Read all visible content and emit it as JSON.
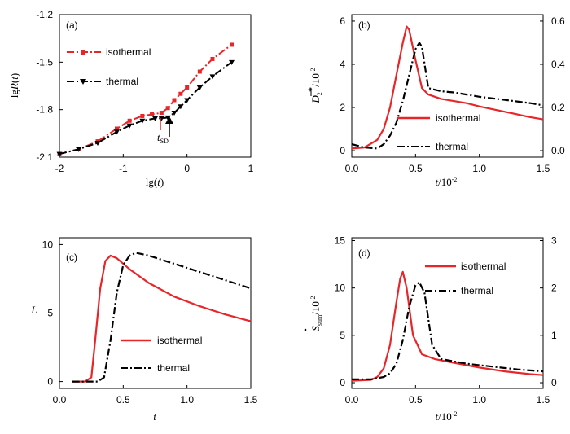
{
  "colors": {
    "isothermal": "#e8262a",
    "thermal": "#000000",
    "axis": "#000000"
  },
  "chart_data": [
    {
      "id": "a",
      "type": "line",
      "panel_label": "(a)",
      "xlabel": "lg(t)",
      "ylabel": "lgR(t)",
      "xlim": [
        -2,
        1
      ],
      "ylim": [
        -2.1,
        -1.2
      ],
      "xticks": [
        -2,
        -1,
        0,
        1
      ],
      "xtick_labels": [
        "-2",
        "-1",
        "0",
        "1"
      ],
      "yticks": [
        -2.1,
        -1.8,
        -1.5,
        -1.2
      ],
      "ytick_labels": [
        "-2.1",
        "-1.8",
        "-1.5",
        "-1.2"
      ],
      "legend_position": "upper-left",
      "annotation": {
        "text": "t",
        "subscript": "SD",
        "x": -0.28,
        "y": -1.855
      },
      "series": [
        {
          "name": "isothermal",
          "marker": "dash-dot",
          "x": [
            -2.0,
            -1.7,
            -1.4,
            -1.1,
            -0.9,
            -0.7,
            -0.55,
            -0.4,
            -0.3,
            -0.2,
            -0.1,
            0.0,
            0.2,
            0.4,
            0.7
          ],
          "y": [
            -2.08,
            -2.05,
            -2.0,
            -1.92,
            -1.87,
            -1.84,
            -1.83,
            -1.82,
            -1.79,
            -1.74,
            -1.7,
            -1.66,
            -1.56,
            -1.48,
            -1.39
          ]
        },
        {
          "name": "thermal",
          "marker": "triangle-down",
          "x": [
            -2.0,
            -1.7,
            -1.4,
            -1.1,
            -0.9,
            -0.7,
            -0.5,
            -0.4,
            -0.3,
            -0.2,
            -0.1,
            0.0,
            0.2,
            0.4,
            0.7
          ],
          "y": [
            -2.08,
            -2.05,
            -2.01,
            -1.94,
            -1.9,
            -1.87,
            -1.855,
            -1.855,
            -1.85,
            -1.82,
            -1.78,
            -1.74,
            -1.66,
            -1.59,
            -1.5
          ]
        }
      ]
    },
    {
      "id": "b",
      "type": "line",
      "panel_label": "(b)",
      "xlabel": "t/10-2",
      "ylabel": "D2*/10-2",
      "xlim": [
        0,
        1.5
      ],
      "ylim": [
        -0.3,
        6.3
      ],
      "xticks": [
        0,
        0.5,
        1.0,
        1.5
      ],
      "xtick_labels": [
        "0.0",
        "0.5",
        "1.0",
        "1.5"
      ],
      "yticks": [
        0,
        2,
        4,
        6
      ],
      "ytick_labels": [
        "0",
        "2",
        "4",
        "6"
      ],
      "y2ticks": [
        0,
        2,
        4,
        6
      ],
      "y2tick_labels": [
        "0.0",
        "0.2",
        "0.4",
        "0.6"
      ],
      "legend_position": "lower-right",
      "series": [
        {
          "name": "isothermal",
          "x": [
            0,
            0.1,
            0.2,
            0.25,
            0.3,
            0.35,
            0.4,
            0.43,
            0.45,
            0.5,
            0.55,
            0.6,
            0.7,
            0.8,
            0.9,
            1.0,
            1.2,
            1.4,
            1.5
          ],
          "y": [
            0.1,
            0.15,
            0.5,
            1.0,
            2.0,
            3.5,
            5.0,
            5.75,
            5.6,
            4.2,
            2.9,
            2.6,
            2.4,
            2.3,
            2.2,
            2.05,
            1.8,
            1.55,
            1.45
          ]
        },
        {
          "name": "thermal",
          "x": [
            0,
            0.1,
            0.2,
            0.25,
            0.3,
            0.35,
            0.4,
            0.45,
            0.5,
            0.53,
            0.55,
            0.6,
            0.7,
            0.8,
            1.0,
            1.2,
            1.4,
            1.5
          ],
          "y": [
            0.3,
            0.15,
            0.1,
            0.3,
            0.7,
            1.3,
            2.3,
            3.5,
            4.7,
            5.0,
            4.8,
            2.9,
            2.75,
            2.7,
            2.5,
            2.35,
            2.2,
            2.1
          ]
        }
      ]
    },
    {
      "id": "c",
      "type": "line",
      "panel_label": "(c)",
      "xlabel": "t",
      "ylabel": "L",
      "xlim": [
        0,
        1.5
      ],
      "ylim": [
        -0.5,
        10.5
      ],
      "xticks": [
        0,
        0.5,
        1.0,
        1.5
      ],
      "xtick_labels": [
        "0.0",
        "0.5",
        "1.0",
        "1.5"
      ],
      "yticks": [
        0,
        5,
        10
      ],
      "ytick_labels": [
        "0",
        "5",
        "10"
      ],
      "legend_position": "lower-center",
      "series": [
        {
          "name": "isothermal",
          "x": [
            0.1,
            0.2,
            0.25,
            0.28,
            0.32,
            0.36,
            0.4,
            0.45,
            0.55,
            0.7,
            0.9,
            1.1,
            1.3,
            1.5
          ],
          "y": [
            0,
            0,
            0.3,
            3.0,
            6.8,
            8.8,
            9.2,
            9.0,
            8.2,
            7.2,
            6.2,
            5.5,
            4.9,
            4.4
          ]
        },
        {
          "name": "thermal",
          "x": [
            0.1,
            0.3,
            0.35,
            0.4,
            0.45,
            0.5,
            0.55,
            0.6,
            0.7,
            0.9,
            1.1,
            1.3,
            1.5
          ],
          "y": [
            0,
            0,
            0.3,
            3.0,
            6.5,
            8.5,
            9.2,
            9.4,
            9.2,
            8.6,
            8.0,
            7.4,
            6.8
          ]
        }
      ]
    },
    {
      "id": "d",
      "type": "line",
      "panel_label": "(d)",
      "xlabel": "t/10-2",
      "ylabel": "Ssum/10-2",
      "xlim": [
        0,
        1.5
      ],
      "ylim": [
        -0.6,
        15.3
      ],
      "xticks": [
        0,
        0.5,
        1.0,
        1.5
      ],
      "xtick_labels": [
        "0.0",
        "0.5",
        "1.0",
        "1.5"
      ],
      "yticks": [
        0,
        5,
        10,
        15
      ],
      "ytick_labels": [
        "0",
        "5",
        "10",
        "15"
      ],
      "y2ticks": [
        0,
        5,
        10,
        15
      ],
      "y2tick_labels": [
        "0",
        "1",
        "2",
        "3"
      ],
      "legend_position": "upper-right",
      "series": [
        {
          "name": "isothermal",
          "x": [
            0,
            0.15,
            0.2,
            0.25,
            0.3,
            0.35,
            0.38,
            0.4,
            0.43,
            0.48,
            0.55,
            0.65,
            0.8,
            1.0,
            1.2,
            1.4,
            1.5
          ],
          "y": [
            0.2,
            0.3,
            0.6,
            1.5,
            4.0,
            8.5,
            11.0,
            11.7,
            10.0,
            5.0,
            3.0,
            2.5,
            2.1,
            1.6,
            1.2,
            0.9,
            0.8
          ]
        },
        {
          "name": "thermal",
          "x": [
            0,
            0.15,
            0.25,
            0.3,
            0.35,
            0.4,
            0.45,
            0.5,
            0.53,
            0.57,
            0.63,
            0.7,
            0.9,
            1.1,
            1.3,
            1.5
          ],
          "y": [
            0.35,
            0.35,
            0.6,
            1.0,
            2.0,
            4.5,
            8.0,
            10.3,
            10.6,
            9.5,
            4.0,
            2.5,
            2.0,
            1.7,
            1.4,
            1.2
          ]
        }
      ]
    }
  ]
}
